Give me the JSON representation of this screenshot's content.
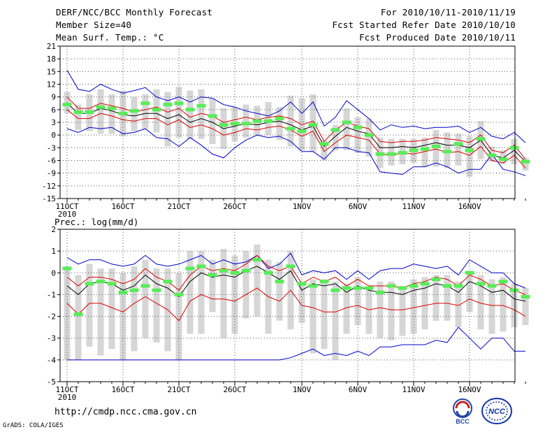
{
  "header": {
    "title": "DERF/NCC/BCC Monthly Forecast",
    "member_size": "Member Size=40",
    "variable": "Mean Surf. Temp.: °C",
    "period": "For 2010/10/11-2010/11/19",
    "fcst_started": "Fcst Started Refer Date 2010/10/10",
    "fcst_produced": "Fcst Produced Date 2010/10/11"
  },
  "footer": {
    "url": "http://cmdp.ncc.cma.gov.cn",
    "grads": "GrADS: COLA/IGES",
    "logo_left_text": "BCC",
    "logo_right_text": "NCC"
  },
  "colors": {
    "max_min": "#0000cc",
    "spread": "#dd0000",
    "mean": "#000000",
    "obs": "#55ee55",
    "box": "#d6d6d6",
    "grid": "#555555"
  },
  "chart_data": [
    {
      "type": "line",
      "title": "Mean Surf. Temp.: °C",
      "x_tick_labels": [
        "11OCT",
        "16OCT",
        "21OCT",
        "26OCT",
        "1NOV",
        "6NOV",
        "11NOV",
        "16NOV"
      ],
      "x_year_label": "2010",
      "x_tick_days": [
        1,
        6,
        11,
        16,
        22,
        27,
        32,
        37
      ],
      "ylim": [
        -15,
        21
      ],
      "yticks": [
        -15,
        -12,
        -9,
        -6,
        -3,
        0,
        3,
        6,
        9,
        12,
        15,
        18,
        21
      ],
      "series": [
        {
          "name": "max",
          "values": [
            15.3,
            10.8,
            10.3,
            12.0,
            10.8,
            9.9,
            10.5,
            11.2,
            9.0,
            8.1,
            9.0,
            7.8,
            9.0,
            8.7,
            7.2,
            6.6,
            5.7,
            5.1,
            4.5,
            5.7,
            7.8,
            5.1,
            7.8,
            2.1,
            4.2,
            8.1,
            6.0,
            3.9,
            1.2,
            2.4,
            1.8,
            2.1,
            1.5,
            1.8,
            1.8,
            2.1,
            0.6,
            1.8,
            -0.3,
            -0.9,
            0.6,
            -1.8
          ]
        },
        {
          "name": "spread_upper",
          "values": [
            9.0,
            6.3,
            6.3,
            7.5,
            6.9,
            6.3,
            5.4,
            6.0,
            6.6,
            5.4,
            6.3,
            4.2,
            5.1,
            4.5,
            3.0,
            3.6,
            4.2,
            3.6,
            4.2,
            4.5,
            3.9,
            2.4,
            3.3,
            -1.5,
            1.2,
            3.0,
            2.1,
            1.5,
            -1.5,
            -1.8,
            -1.5,
            -1.5,
            -1.2,
            -0.6,
            -0.9,
            -1.2,
            -1.8,
            0.0,
            -3.6,
            -4.2,
            -2.4,
            -5.7
          ]
        },
        {
          "name": "mean",
          "values": [
            7.5,
            5.1,
            5.1,
            6.3,
            5.7,
            4.8,
            4.5,
            5.1,
            5.1,
            3.9,
            4.8,
            3.0,
            3.9,
            3.0,
            1.5,
            2.1,
            2.7,
            2.4,
            3.0,
            3.3,
            2.4,
            1.2,
            2.1,
            -2.7,
            -0.3,
            1.8,
            0.9,
            0.3,
            -3.0,
            -3.0,
            -2.7,
            -3.0,
            -2.4,
            -1.8,
            -2.4,
            -2.4,
            -3.0,
            -1.2,
            -4.8,
            -5.4,
            -3.6,
            -6.3
          ]
        },
        {
          "name": "spread_lower",
          "values": [
            6.0,
            3.9,
            3.9,
            5.1,
            4.5,
            3.6,
            3.3,
            3.9,
            3.9,
            2.4,
            3.6,
            1.8,
            2.4,
            1.5,
            0.0,
            0.6,
            1.5,
            1.2,
            1.8,
            2.1,
            1.2,
            -0.3,
            0.9,
            -3.9,
            -1.8,
            0.0,
            -0.6,
            -1.2,
            -4.5,
            -4.8,
            -4.2,
            -4.5,
            -3.9,
            -3.3,
            -4.2,
            -3.9,
            -4.8,
            -2.7,
            -6.0,
            -6.6,
            -4.8,
            -7.8
          ]
        },
        {
          "name": "min",
          "values": [
            1.5,
            0.6,
            1.8,
            1.5,
            1.8,
            0.3,
            0.6,
            1.5,
            -0.6,
            -0.9,
            -2.7,
            -0.6,
            -2.4,
            -4.5,
            -5.4,
            -3.0,
            -1.2,
            0.0,
            -0.6,
            -0.3,
            -1.5,
            -3.9,
            -3.9,
            -5.7,
            -3.0,
            -3.0,
            -3.9,
            -4.2,
            -8.7,
            -9.0,
            -9.3,
            -7.5,
            -7.5,
            -6.6,
            -7.5,
            -9.0,
            -8.1,
            -8.1,
            -4.5,
            -8.1,
            -8.7,
            -9.6
          ]
        },
        {
          "name": "obs",
          "values": [
            7.2,
            5.4,
            5.4,
            6.6,
            6.3,
            5.1,
            5.7,
            7.5,
            6.0,
            7.2,
            7.5,
            6.0,
            6.9,
            4.5,
            2.4,
            2.7,
            2.7,
            3.3,
            3.3,
            3.9,
            1.5,
            0.9,
            2.4,
            -2.1,
            1.2,
            3.0,
            1.8,
            0.0,
            -4.5,
            -4.5,
            -4.2,
            -3.6,
            -3.3,
            -2.7,
            -3.9,
            -2.1,
            -3.6,
            -0.9,
            -4.8,
            -5.7,
            -3.0,
            -6.3
          ]
        },
        {
          "name": "box_high",
          "values": [
            10.2,
            7.2,
            9.6,
            10.8,
            9.6,
            10.5,
            9.0,
            9.6,
            10.8,
            10.2,
            11.4,
            10.5,
            10.8,
            8.7,
            6.3,
            6.6,
            7.2,
            6.9,
            7.8,
            6.6,
            9.3,
            8.7,
            9.6,
            -1.2,
            2.4,
            6.3,
            4.2,
            3.9,
            -0.6,
            -0.9,
            -0.9,
            -0.9,
            -0.6,
            1.2,
            0.6,
            0.3,
            -0.3,
            3.3,
            -2.7,
            -3.6,
            -0.9,
            -5.4
          ]
        },
        {
          "name": "box_low",
          "values": [
            5.1,
            1.2,
            0.9,
            0.3,
            0.3,
            -0.3,
            0.9,
            1.5,
            0.6,
            -2.7,
            -0.6,
            -0.9,
            -0.9,
            -2.1,
            -3.3,
            -1.5,
            -0.6,
            0.0,
            0.0,
            -1.2,
            -2.7,
            -3.6,
            -3.9,
            -6.0,
            -3.6,
            -3.6,
            -4.2,
            -5.1,
            -7.8,
            -7.2,
            -6.9,
            -6.6,
            -7.5,
            -7.5,
            -7.8,
            -7.2,
            -9.9,
            -5.7,
            -6.3,
            -6.9,
            -6.9,
            -8.4
          ]
        }
      ]
    },
    {
      "type": "line",
      "title": "Prec.: log(mm/d)",
      "x_tick_labels": [
        "11OCT",
        "16OCT",
        "21OCT",
        "26OCT",
        "1NOV",
        "6NOV",
        "11NOV",
        "16NOV"
      ],
      "x_year_label": "2010",
      "x_tick_days": [
        1,
        6,
        11,
        16,
        22,
        27,
        32,
        37
      ],
      "ylim": [
        -5,
        2
      ],
      "yticks": [
        -5,
        -4,
        -3,
        -2,
        -1,
        0,
        1,
        2
      ],
      "series": [
        {
          "name": "max",
          "values": [
            0.7,
            0.4,
            0.6,
            0.6,
            0.4,
            0.3,
            0.4,
            0.8,
            0.4,
            0.3,
            0.4,
            0.6,
            0.8,
            0.4,
            0.6,
            0.4,
            0.5,
            0.8,
            0.2,
            0.4,
            0.9,
            -0.1,
            0.1,
            0.0,
            0.1,
            -0.3,
            0.1,
            -0.3,
            0.1,
            0.2,
            0.2,
            0.4,
            0.3,
            0.2,
            0.3,
            -0.1,
            0.6,
            0.3,
            0.0,
            0.0,
            -0.5,
            -0.7
          ]
        },
        {
          "name": "spread_upper",
          "values": [
            -0.2,
            -0.6,
            -0.2,
            -0.2,
            -0.3,
            -0.5,
            -0.3,
            0.2,
            -0.2,
            -0.4,
            -0.8,
            -0.1,
            0.3,
            0.1,
            0.2,
            0.1,
            0.4,
            0.8,
            0.3,
            0.1,
            0.3,
            -0.5,
            -0.2,
            -0.4,
            -0.2,
            -0.6,
            -0.3,
            -0.6,
            -0.6,
            -0.6,
            -0.7,
            -0.5,
            -0.4,
            -0.2,
            -0.3,
            -0.6,
            -0.1,
            -0.3,
            -0.6,
            -0.5,
            -0.8,
            -1.0
          ]
        },
        {
          "name": "mean",
          "values": [
            -0.6,
            -1.0,
            -0.5,
            -0.4,
            -0.5,
            -0.8,
            -0.6,
            -0.1,
            -0.5,
            -0.7,
            -1.1,
            -0.4,
            0.0,
            -0.2,
            -0.1,
            -0.2,
            0.1,
            0.3,
            0.0,
            -0.3,
            0.1,
            -0.8,
            -0.5,
            -0.6,
            -0.5,
            -0.9,
            -0.6,
            -0.8,
            -0.9,
            -0.9,
            -1.0,
            -0.8,
            -0.7,
            -0.5,
            -0.6,
            -0.9,
            -0.4,
            -0.6,
            -0.9,
            -0.8,
            -1.2,
            -1.3
          ]
        },
        {
          "name": "spread_lower",
          "values": [
            -1.4,
            -1.9,
            -1.4,
            -1.4,
            -1.6,
            -1.8,
            -1.4,
            -1.1,
            -1.4,
            -1.7,
            -2.2,
            -1.3,
            -1.0,
            -1.2,
            -1.2,
            -1.3,
            -1.0,
            -0.7,
            -1.1,
            -1.3,
            -0.8,
            -1.5,
            -1.6,
            -1.8,
            -1.8,
            -1.6,
            -1.5,
            -1.7,
            -1.6,
            -1.7,
            -1.7,
            -1.6,
            -1.5,
            -1.4,
            -1.4,
            -1.5,
            -1.2,
            -1.4,
            -1.5,
            -1.5,
            -1.7,
            -2.0
          ]
        },
        {
          "name": "min",
          "values": [
            -4.0,
            -4.0,
            -4.0,
            -4.0,
            -4.0,
            -4.0,
            -4.0,
            -4.0,
            -4.0,
            -4.0,
            -4.0,
            -4.0,
            -4.0,
            -4.0,
            -4.0,
            -4.0,
            -4.0,
            -4.0,
            -4.0,
            -4.0,
            -3.9,
            -3.7,
            -3.5,
            -3.8,
            -3.7,
            -3.8,
            -3.6,
            -3.8,
            -3.4,
            -3.4,
            -3.3,
            -3.3,
            -3.3,
            -3.1,
            -3.2,
            -2.5,
            -3.0,
            -3.5,
            -3.0,
            -3.0,
            -3.6,
            -3.6
          ]
        },
        {
          "name": "obs",
          "values": [
            0.2,
            -1.9,
            -0.5,
            -0.4,
            -0.5,
            -0.9,
            -0.8,
            -0.6,
            -0.8,
            -0.4,
            -1.0,
            0.2,
            0.3,
            -0.1,
            0.1,
            0.0,
            0.1,
            0.6,
            0.0,
            -0.4,
            0.3,
            -0.5,
            -0.6,
            -0.4,
            -0.8,
            -0.7,
            -0.7,
            -0.7,
            -0.9,
            -0.6,
            -0.7,
            -0.6,
            -0.5,
            -0.3,
            -0.6,
            -0.6,
            0.0,
            -0.5,
            -0.6,
            -0.4,
            -0.8,
            -1.1
          ]
        },
        {
          "name": "box_high",
          "values": [
            0.3,
            -0.1,
            0.4,
            0.2,
            0.2,
            0.0,
            0.3,
            0.6,
            0.2,
            0.2,
            0.0,
            1.0,
            1.0,
            0.6,
            1.1,
            0.8,
            1.0,
            1.3,
            0.6,
            0.5,
            1.0,
            -0.4,
            -0.3,
            -0.3,
            -0.4,
            -0.5,
            -0.2,
            -0.7,
            -0.4,
            -0.4,
            -0.6,
            -0.3,
            -0.2,
            -0.1,
            -0.1,
            -0.4,
            0.1,
            -0.1,
            -0.3,
            -0.2,
            -0.5,
            -0.7
          ]
        },
        {
          "name": "box_low",
          "values": [
            -4.0,
            -4.0,
            -3.4,
            -3.8,
            -3.5,
            -4.0,
            -3.6,
            -3.0,
            -3.2,
            -3.6,
            -4.0,
            -2.8,
            -2.8,
            -1.8,
            -3.0,
            -2.8,
            -2.1,
            -2.0,
            -2.8,
            -2.2,
            -2.6,
            -2.3,
            -3.7,
            -3.5,
            -4.0,
            -2.8,
            -2.4,
            -2.8,
            -3.0,
            -3.1,
            -2.9,
            -2.8,
            -2.6,
            -2.2,
            -2.2,
            -2.5,
            -1.8,
            -2.6,
            -2.8,
            -2.7,
            -2.5,
            -2.4
          ]
        }
      ]
    }
  ]
}
